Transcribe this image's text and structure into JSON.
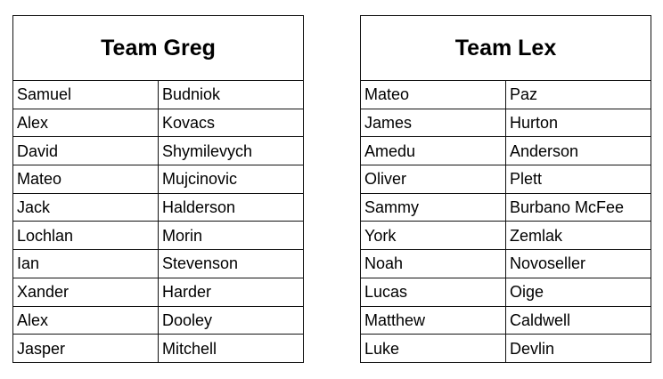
{
  "tables": [
    {
      "title": "Team Greg",
      "rows": [
        [
          "Samuel",
          "Budniok"
        ],
        [
          "Alex",
          "Kovacs"
        ],
        [
          "David",
          "Shymilevych"
        ],
        [
          "Mateo",
          "Mujcinovic"
        ],
        [
          "Jack",
          "Halderson"
        ],
        [
          "Lochlan",
          "Morin"
        ],
        [
          "Ian",
          "Stevenson"
        ],
        [
          "Xander",
          "Harder"
        ],
        [
          "Alex",
          "Dooley"
        ],
        [
          "Jasper",
          "Mitchell"
        ]
      ]
    },
    {
      "title": "Team Lex",
      "rows": [
        [
          "Mateo",
          "Paz"
        ],
        [
          "James",
          "Hurton"
        ],
        [
          "Amedu",
          "Anderson"
        ],
        [
          "Oliver",
          "Plett"
        ],
        [
          "Sammy",
          "Burbano McFee"
        ],
        [
          "York",
          "Zemlak"
        ],
        [
          "Noah",
          "Novoseller"
        ],
        [
          "Lucas",
          "Oige"
        ],
        [
          "Matthew",
          "Caldwell"
        ],
        [
          "Luke",
          "Devlin"
        ]
      ]
    }
  ]
}
